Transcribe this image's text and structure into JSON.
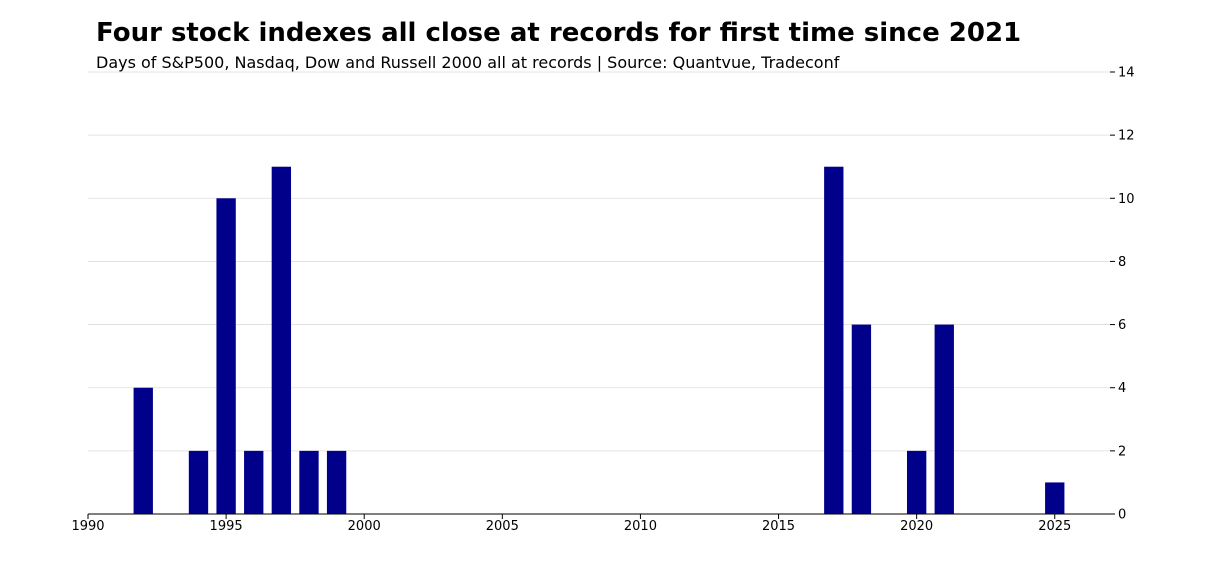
{
  "chart_data": {
    "type": "bar",
    "title": "Four stock indexes all close at records for first time since 2021",
    "subtitle": "Days of S&P500, Nasdaq, Dow and Russell 2000 all at records | Source: Quantvue, Tradeconf",
    "xlabel": "",
    "ylabel": "",
    "x": [
      1992,
      1994,
      1995,
      1996,
      1997,
      1998,
      1999,
      2017,
      2018,
      2020,
      2021,
      2025
    ],
    "values": [
      4,
      2,
      10,
      2,
      11,
      2,
      2,
      11,
      6,
      2,
      6,
      1
    ],
    "xlim": [
      1990,
      2027
    ],
    "ylim": [
      0,
      14
    ],
    "xticks": [
      1990,
      1995,
      2000,
      2005,
      2010,
      2015,
      2020,
      2025
    ],
    "yticks": [
      0,
      2,
      4,
      6,
      8,
      10,
      12,
      14
    ],
    "y_axis_side": "right",
    "grid": "horizontal",
    "bar_color": "#00008b",
    "grid_color": "#dddddd"
  }
}
